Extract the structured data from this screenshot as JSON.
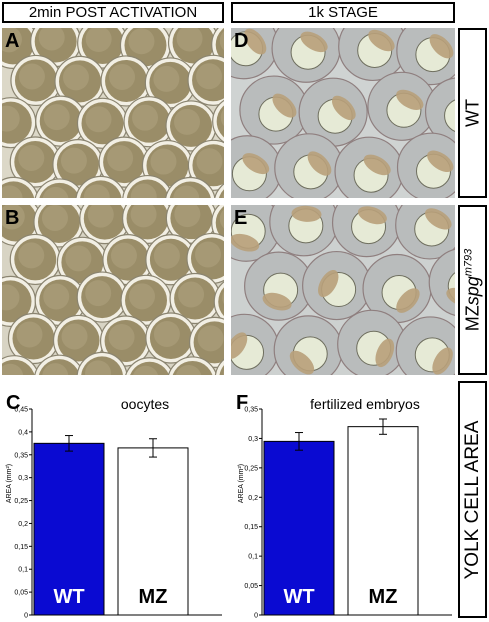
{
  "headers": {
    "left": "2min POST ACTIVATION",
    "right": "1k STAGE"
  },
  "row_labels": {
    "wt": "WT",
    "mz_prefix": "MZ",
    "mz_gene": "spg",
    "mz_allele": "m793",
    "yolk": "YOLK CELL AREA"
  },
  "panels": {
    "A": "A",
    "B": "B",
    "C": "C",
    "D": "D",
    "E": "E",
    "F": "F"
  },
  "colors": {
    "wt_bar": "#0a0ad2",
    "mz_bar": "#ffffff"
  },
  "chart_data": [
    {
      "type": "bar",
      "title": "oocytes",
      "ylabel": "AREA (mm²)",
      "ylim": [
        0,
        0.45
      ],
      "yticks": [
        "0",
        "0,05",
        "0,1",
        "0,15",
        "0,2",
        "0,25",
        "0,3",
        "0,35",
        "0,4",
        "0,45"
      ],
      "categories": [
        "WT",
        "MZ"
      ],
      "values": [
        0.375,
        0.365
      ],
      "errors": [
        0.017,
        0.02
      ]
    },
    {
      "type": "bar",
      "title": "fertilized embryos",
      "ylabel": "AREA (mm²)",
      "ylim": [
        0,
        0.35
      ],
      "yticks": [
        "0",
        "0,05",
        "0,1",
        "0,15",
        "0,2",
        "0,25",
        "0,3",
        "0,35"
      ],
      "categories": [
        "WT",
        "MZ"
      ],
      "values": [
        0.295,
        0.32
      ],
      "errors": [
        0.015,
        0.013
      ]
    }
  ]
}
